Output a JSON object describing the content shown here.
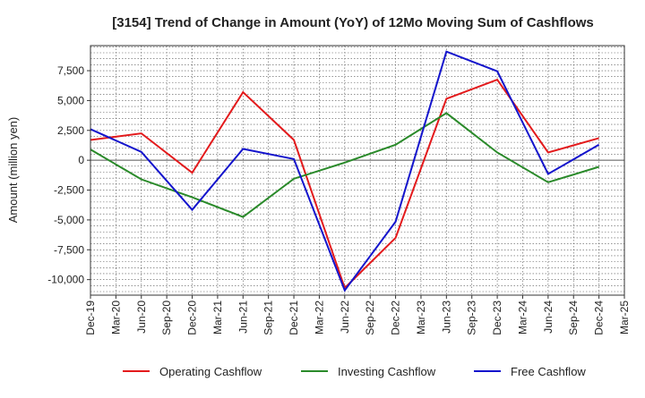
{
  "chart_data": {
    "type": "line",
    "title": "[3154]  Trend of Change in Amount (YoY) of 12Mo Moving Sum of Cashflows",
    "xlabel": "",
    "ylabel": "Amount (million yen)",
    "categories": [
      "Dec-19",
      "Mar-20",
      "Jun-20",
      "Sep-20",
      "Dec-20",
      "Mar-21",
      "Jun-21",
      "Sep-21",
      "Dec-21",
      "Mar-22",
      "Jun-22",
      "Sep-22",
      "Dec-22",
      "Mar-23",
      "Jun-23",
      "Sep-23",
      "Dec-23",
      "Mar-24",
      "Jun-24",
      "Sep-24",
      "Dec-24",
      "Mar-25"
    ],
    "ylim": [
      -11300,
      9600
    ],
    "yticks": [
      7500,
      5000,
      2500,
      0,
      -2500,
      -5000,
      -7500,
      -10000
    ],
    "ytick_labels": [
      "7,500",
      "5,000",
      "2,500",
      "0",
      "-2,500",
      "-5,000",
      "-7,500",
      "-10,000"
    ],
    "grid": true,
    "legend_position": "bottom",
    "series": [
      {
        "name": "Operating Cashflow",
        "color": "#e31a1c",
        "points": [
          {
            "x": "Dec-19",
            "y": 1700
          },
          {
            "x": "Jun-20",
            "y": 2250
          },
          {
            "x": "Dec-20",
            "y": -1050
          },
          {
            "x": "Jun-21",
            "y": 5700
          },
          {
            "x": "Dec-21",
            "y": 1700
          },
          {
            "x": "Jun-22",
            "y": -10700
          },
          {
            "x": "Dec-22",
            "y": -6500
          },
          {
            "x": "Jun-23",
            "y": 5150
          },
          {
            "x": "Dec-23",
            "y": 6750
          },
          {
            "x": "Jun-24",
            "y": 650
          },
          {
            "x": "Dec-24",
            "y": 1850
          }
        ]
      },
      {
        "name": "Investing Cashflow",
        "color": "#2a8a2a",
        "points": [
          {
            "x": "Dec-19",
            "y": 900
          },
          {
            "x": "Jun-20",
            "y": -1600
          },
          {
            "x": "Dec-20",
            "y": -3100
          },
          {
            "x": "Jun-21",
            "y": -4750
          },
          {
            "x": "Dec-21",
            "y": -1550
          },
          {
            "x": "Jun-22",
            "y": -200
          },
          {
            "x": "Dec-22",
            "y": 1300
          },
          {
            "x": "Jun-23",
            "y": 3950
          },
          {
            "x": "Dec-23",
            "y": 650
          },
          {
            "x": "Jun-24",
            "y": -1850
          },
          {
            "x": "Dec-24",
            "y": -550
          }
        ]
      },
      {
        "name": "Free Cashflow",
        "color": "#1414cc",
        "points": [
          {
            "x": "Dec-19",
            "y": 2600
          },
          {
            "x": "Jun-20",
            "y": 700
          },
          {
            "x": "Dec-20",
            "y": -4150
          },
          {
            "x": "Jun-21",
            "y": 950
          },
          {
            "x": "Dec-21",
            "y": 100
          },
          {
            "x": "Jun-22",
            "y": -10900
          },
          {
            "x": "Dec-22",
            "y": -5150
          },
          {
            "x": "Jun-23",
            "y": 9100
          },
          {
            "x": "Dec-23",
            "y": 7450
          },
          {
            "x": "Jun-24",
            "y": -1150
          },
          {
            "x": "Dec-24",
            "y": 1300
          }
        ]
      }
    ]
  }
}
